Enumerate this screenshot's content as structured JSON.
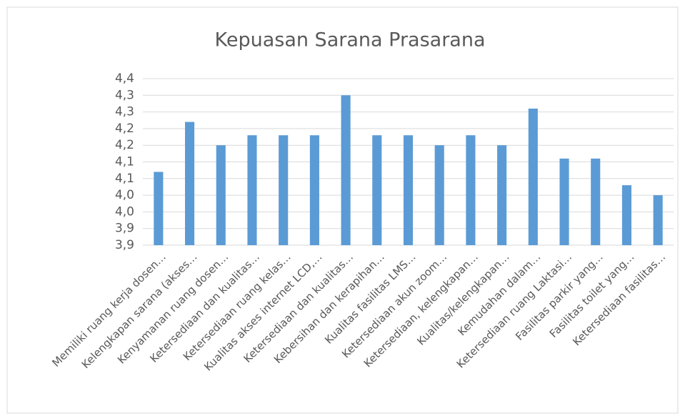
{
  "chart_data": {
    "type": "bar",
    "title": "Kepuasan Sarana Prasarana",
    "categories": [
      "Memiliki ruang kerja dosen…",
      "Kelengkapan sarana (akses…",
      "Kenyamanan ruang dosen…",
      "Ketersediaan dan kualitas…",
      "Ketersediaan ruang kelas…",
      "Kualitas akses internet LCD,…",
      "Ketersediaan dan kualitas…",
      "Kebersihan dan kerapihan…",
      "Kualitas fasilitas LMS…",
      "Ketersediaan akun zoom…",
      "Ketersediaan, kelengkapan…",
      "Kualitas/kelengkapan…",
      "Kemudahan dalam…",
      "Ketersediaan ruang Laktasi…",
      "Fasilitas parkir yang…",
      "Fasilitas toilet yang…",
      "Ketersediaan fasilitas…"
    ],
    "values": [
      4.07,
      4.22,
      4.15,
      4.18,
      4.18,
      4.18,
      4.3,
      4.18,
      4.18,
      4.15,
      4.18,
      4.15,
      4.26,
      4.11,
      4.11,
      4.03,
      4.0
    ],
    "color": "#5b9bd5",
    "ylim": [
      3.85,
      4.35
    ],
    "yticks": [
      {
        "value": 3.85,
        "label": "3,9"
      },
      {
        "value": 3.9,
        "label": "3,9"
      },
      {
        "value": 3.95,
        "label": "4,0"
      },
      {
        "value": 4.0,
        "label": "4,0"
      },
      {
        "value": 4.05,
        "label": "4,1"
      },
      {
        "value": 4.1,
        "label": "4,1"
      },
      {
        "value": 4.15,
        "label": "4,2"
      },
      {
        "value": 4.2,
        "label": "4,2"
      },
      {
        "value": 4.25,
        "label": "4,3"
      },
      {
        "value": 4.3,
        "label": "4,3"
      },
      {
        "value": 4.35,
        "label": "4,4"
      }
    ],
    "grid": true
  }
}
